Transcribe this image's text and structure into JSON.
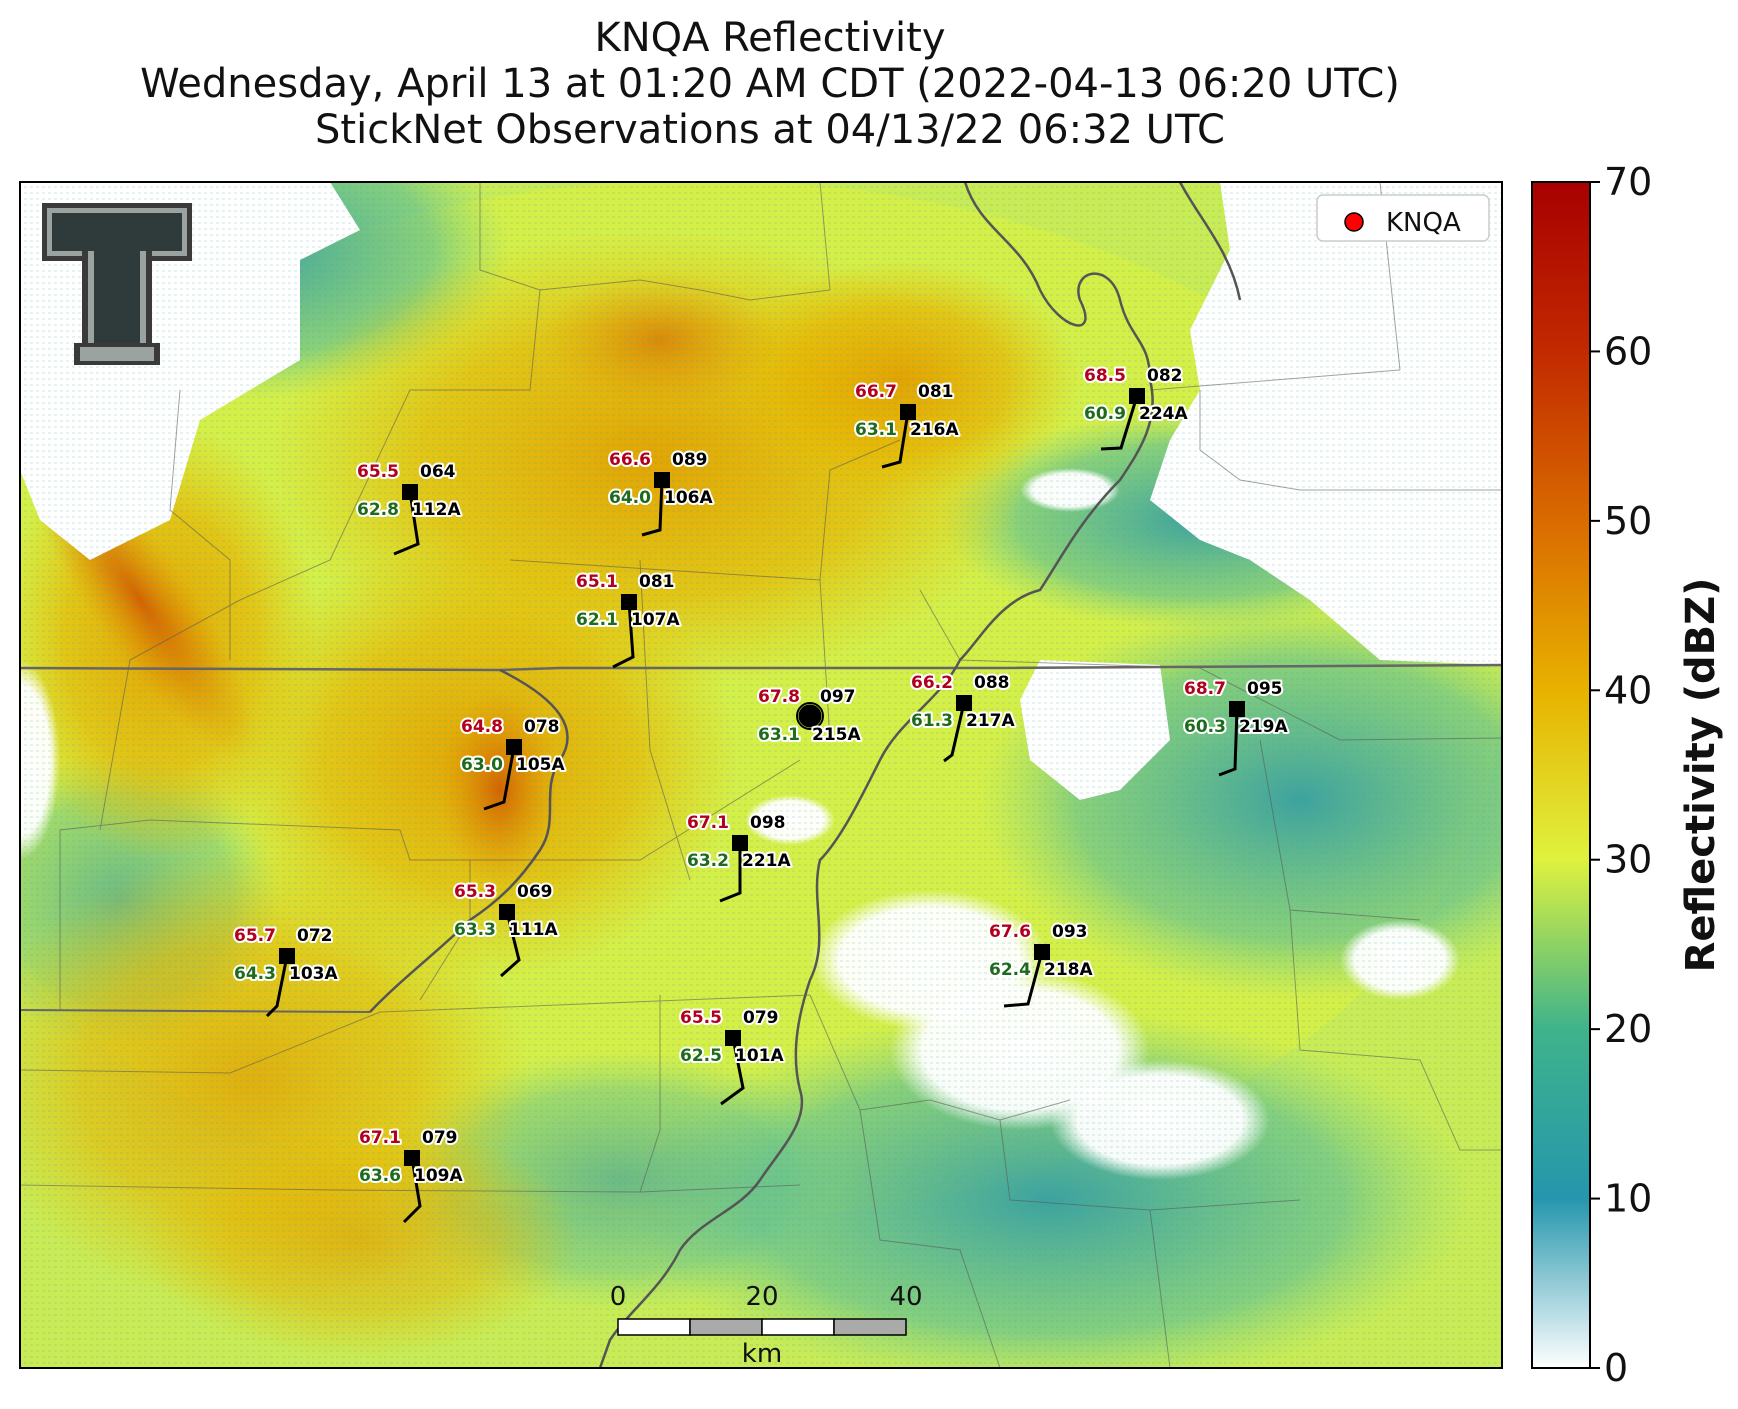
{
  "title_lines": [
    "KNQA Reflectivity",
    "Wednesday, April 13 at 01:20 AM CDT (2022-04-13 06:20 UTC)",
    "StickNet Observations at 04/13/22 06:32 UTC"
  ],
  "legend": {
    "label": "KNQA",
    "marker_color": "#ff0000"
  },
  "colorbar": {
    "label": "Reflectivity (dBZ)",
    "ticks": [
      "0",
      "10",
      "20",
      "30",
      "40",
      "50",
      "60",
      "70"
    ],
    "range": [
      0,
      70
    ],
    "colors": [
      "#ffffff",
      "#2596ad",
      "#3fb38a",
      "#dff23e",
      "#e8b200",
      "#d96b00",
      "#c22a00",
      "#a80000"
    ]
  },
  "scale_bar": {
    "ticks": [
      "0",
      "20",
      "40"
    ],
    "unit": "km"
  },
  "radar_site": {
    "temp": "67.8",
    "dew": "63.1",
    "id": "215A",
    "extra": "097"
  },
  "stations": [
    {
      "temp": "65.5",
      "dew": "62.8",
      "id": "112A",
      "extra": "064"
    },
    {
      "temp": "66.6",
      "dew": "64.0",
      "id": "106A",
      "extra": "089"
    },
    {
      "temp": "66.7",
      "dew": "63.1",
      "id": "216A",
      "extra": "081"
    },
    {
      "temp": "68.5",
      "dew": "60.9",
      "id": "224A",
      "extra": "082"
    },
    {
      "temp": "65.1",
      "dew": "62.1",
      "id": "107A",
      "extra": "081"
    },
    {
      "temp": "66.2",
      "dew": "61.3",
      "id": "217A",
      "extra": "088"
    },
    {
      "temp": "68.7",
      "dew": "60.3",
      "id": "219A",
      "extra": "095"
    },
    {
      "temp": "64.8",
      "dew": "63.0",
      "id": "105A",
      "extra": "078"
    },
    {
      "temp": "67.1",
      "dew": "63.2",
      "id": "221A",
      "extra": "098"
    },
    {
      "temp": "65.3",
      "dew": "63.3",
      "id": "111A",
      "extra": "069"
    },
    {
      "temp": "65.7",
      "dew": "64.3",
      "id": "103A",
      "extra": "072"
    },
    {
      "temp": "67.6",
      "dew": "62.4",
      "id": "218A",
      "extra": "093"
    },
    {
      "temp": "65.5",
      "dew": "62.5",
      "id": "101A",
      "extra": "079"
    },
    {
      "temp": "67.1",
      "dew": "63.6",
      "id": "109A",
      "extra": "079"
    }
  ]
}
